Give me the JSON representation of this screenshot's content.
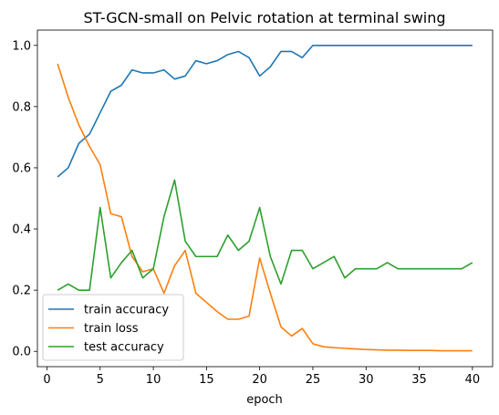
{
  "chart_data": {
    "type": "line",
    "title": "ST-GCN-small on Pelvic rotation at terminal swing",
    "xlabel": "epoch",
    "ylabel": "",
    "xlim": [
      -0.9,
      41.9
    ],
    "ylim": [
      -0.05,
      1.05
    ],
    "xticks": [
      0,
      5,
      10,
      15,
      20,
      25,
      30,
      35,
      40
    ],
    "yticks": [
      0.0,
      0.2,
      0.4,
      0.6,
      0.8,
      1.0
    ],
    "ytick_labels": [
      "0.0",
      "0.2",
      "0.4",
      "0.6",
      "0.8",
      "1.0"
    ],
    "grid": false,
    "legend_position": "lower-left",
    "x": [
      1,
      2,
      3,
      4,
      5,
      6,
      7,
      8,
      9,
      10,
      11,
      12,
      13,
      14,
      15,
      16,
      17,
      18,
      19,
      20,
      21,
      22,
      23,
      24,
      25,
      26,
      27,
      28,
      29,
      30,
      31,
      32,
      33,
      34,
      35,
      36,
      37,
      38,
      39,
      40
    ],
    "series": [
      {
        "name": "train accuracy",
        "color": "#1f77b4",
        "values": [
          0.57,
          0.6,
          0.68,
          0.71,
          0.78,
          0.85,
          0.87,
          0.92,
          0.91,
          0.91,
          0.92,
          0.89,
          0.9,
          0.95,
          0.94,
          0.95,
          0.97,
          0.98,
          0.96,
          0.9,
          0.93,
          0.98,
          0.98,
          0.96,
          1.0,
          1.0,
          1.0,
          1.0,
          1.0,
          1.0,
          1.0,
          1.0,
          1.0,
          1.0,
          1.0,
          1.0,
          1.0,
          1.0,
          1.0,
          1.0
        ]
      },
      {
        "name": "train loss",
        "color": "#ff7f0e",
        "values": [
          0.94,
          0.83,
          0.74,
          0.67,
          0.61,
          0.45,
          0.44,
          0.31,
          0.26,
          0.27,
          0.19,
          0.28,
          0.33,
          0.19,
          0.16,
          0.13,
          0.105,
          0.105,
          0.115,
          0.305,
          0.19,
          0.08,
          0.05,
          0.075,
          0.025,
          0.015,
          0.012,
          0.01,
          0.008,
          0.006,
          0.005,
          0.004,
          0.004,
          0.003,
          0.003,
          0.003,
          0.002,
          0.002,
          0.002,
          0.002
        ]
      },
      {
        "name": "test accuracy",
        "color": "#2ca02c",
        "values": [
          0.2,
          0.22,
          0.2,
          0.2,
          0.47,
          0.24,
          0.29,
          0.33,
          0.24,
          0.27,
          0.44,
          0.56,
          0.36,
          0.31,
          0.31,
          0.31,
          0.38,
          0.33,
          0.36,
          0.47,
          0.31,
          0.22,
          0.33,
          0.33,
          0.27,
          0.29,
          0.31,
          0.24,
          0.27,
          0.27,
          0.27,
          0.29,
          0.27,
          0.27,
          0.27,
          0.27,
          0.27,
          0.27,
          0.27,
          0.29
        ]
      }
    ]
  }
}
